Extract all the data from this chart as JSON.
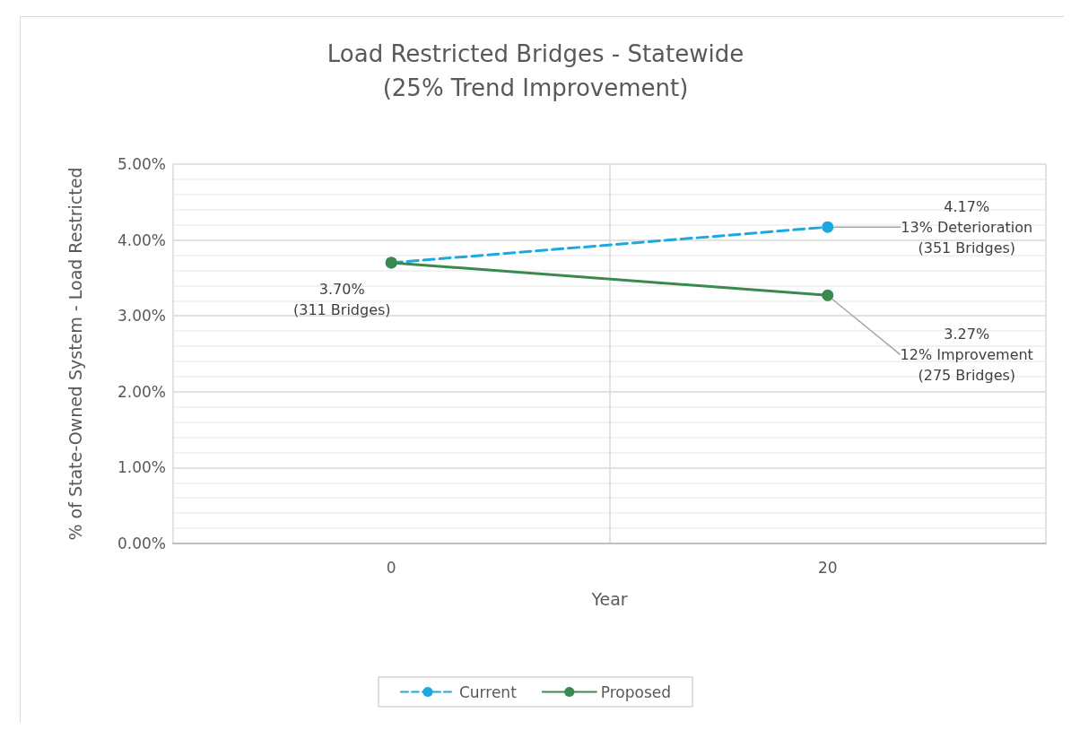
{
  "chart_data": {
    "type": "line",
    "title": "Load Restricted Bridges - Statewide\n(25% Trend Improvement)",
    "xlabel": "Year",
    "ylabel": "% of State-Owned System - Load Restricted",
    "categories": [
      "0",
      "20"
    ],
    "series": [
      {
        "name": "Current",
        "color": "#1ea8e0",
        "values": [
          3.7,
          4.17
        ],
        "line_style": "dashed"
      },
      {
        "name": "Proposed",
        "color": "#3a8a4f",
        "values": [
          3.7,
          3.27
        ],
        "line_style": "solid"
      }
    ],
    "ylim": [
      0,
      5
    ],
    "yticks": [
      {
        "value": 0,
        "label": "0.00%"
      },
      {
        "value": 1,
        "label": "1.00%"
      },
      {
        "value": 2,
        "label": "2.00%"
      },
      {
        "value": 3,
        "label": "3.00%"
      },
      {
        "value": 4,
        "label": "4.00%"
      },
      {
        "value": 5,
        "label": "5.00%"
      }
    ],
    "annotations": [
      {
        "text": "4.17%\n13% Deterioration\n(351 Bridges)",
        "x": "20",
        "y": 4.17
      },
      {
        "text": "3.27%\n12% Improvement\n(275 Bridges)",
        "x": "20",
        "y": 3.27
      },
      {
        "text": "3.70%\n(311 Bridges)",
        "x": "0",
        "y": 3.7
      }
    ],
    "grid": true,
    "legend": "bottom",
    "marker": "circle"
  }
}
